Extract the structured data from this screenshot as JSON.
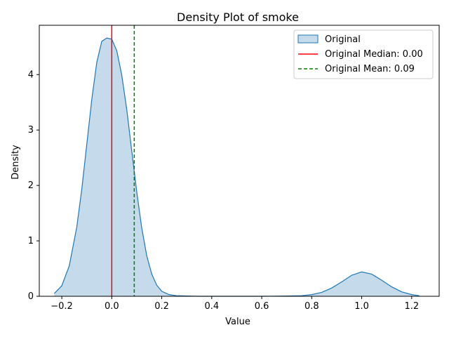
{
  "chart_data": {
    "type": "area",
    "title": "Density Plot of smoke",
    "xlabel": "Value",
    "ylabel": "Density",
    "xlim": [
      -0.29,
      1.31
    ],
    "ylim": [
      0,
      4.89
    ],
    "xticks": [
      -0.2,
      0.0,
      0.2,
      0.4,
      0.6,
      0.8,
      1.0,
      1.2
    ],
    "xtick_labels": [
      "−0.2",
      "0.0",
      "0.2",
      "0.4",
      "0.6",
      "0.8",
      "1.0",
      "1.2"
    ],
    "yticks": [
      0,
      1,
      2,
      3,
      4
    ],
    "ytick_labels": [
      "0",
      "1",
      "2",
      "3",
      "4"
    ],
    "grid": false,
    "legend_position": "top-right",
    "series": [
      {
        "name": "Original",
        "kind": "kde-area",
        "color": "#1f77b4",
        "fill": "#c5dbec",
        "x": [
          -0.23,
          -0.2,
          -0.17,
          -0.14,
          -0.12,
          -0.1,
          -0.08,
          -0.06,
          -0.04,
          -0.02,
          0.0,
          0.02,
          0.04,
          0.06,
          0.08,
          0.1,
          0.12,
          0.14,
          0.16,
          0.18,
          0.2,
          0.23,
          0.26,
          0.3,
          0.35,
          0.4,
          0.5,
          0.6,
          0.7,
          0.76,
          0.8,
          0.84,
          0.88,
          0.92,
          0.96,
          1.0,
          1.04,
          1.08,
          1.12,
          1.16,
          1.2,
          1.23
        ],
        "y": [
          0.05,
          0.19,
          0.55,
          1.25,
          1.93,
          2.74,
          3.55,
          4.22,
          4.6,
          4.66,
          4.64,
          4.43,
          3.99,
          3.37,
          2.62,
          1.88,
          1.23,
          0.73,
          0.4,
          0.2,
          0.09,
          0.03,
          0.01,
          0.005,
          0.0,
          0.0,
          0.0,
          0.0,
          0.005,
          0.01,
          0.03,
          0.07,
          0.15,
          0.26,
          0.38,
          0.44,
          0.4,
          0.29,
          0.17,
          0.08,
          0.03,
          0.01
        ]
      },
      {
        "name": "Original Median: 0.00",
        "kind": "vline",
        "value": 0.0,
        "color": "#ff0000",
        "dash": "solid"
      },
      {
        "name": "Original Mean: 0.09",
        "kind": "vline",
        "value": 0.09,
        "color": "#008000",
        "dash": "dashed"
      }
    ]
  }
}
